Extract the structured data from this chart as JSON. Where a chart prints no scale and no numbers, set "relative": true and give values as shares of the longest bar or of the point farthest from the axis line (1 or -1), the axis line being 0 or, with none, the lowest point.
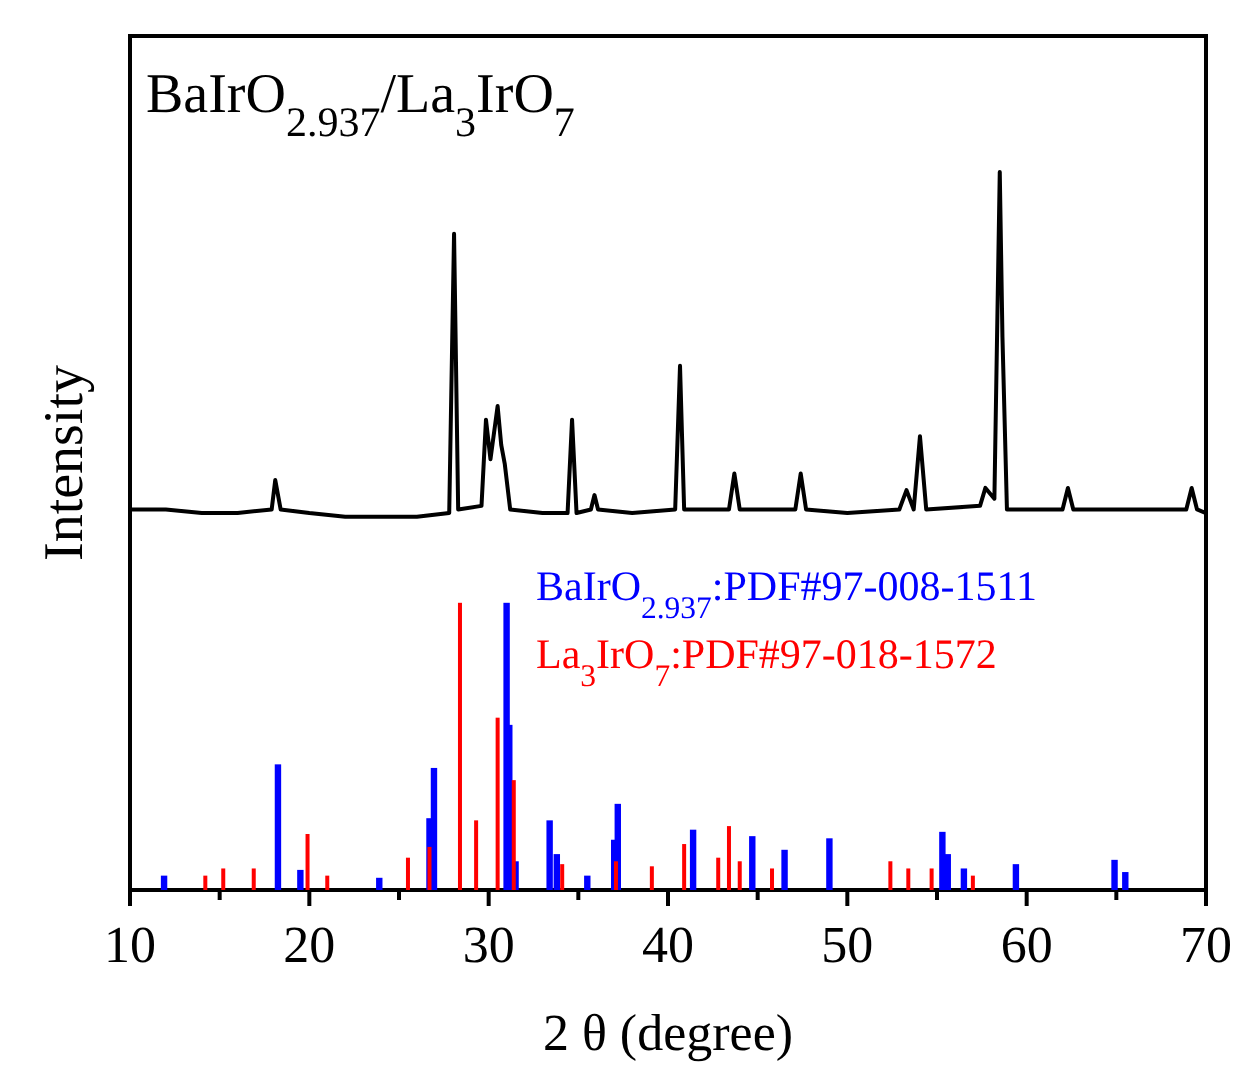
{
  "chart_data": {
    "type": "bar",
    "title": "BaIrO$_{2.937}$/La$_{3}$IrO$_{7}$",
    "xlabel": "2 θ (degree)",
    "ylabel": "Intensity",
    "relative": true,
    "xlim": [
      10,
      70
    ],
    "xticks": [
      10,
      {
        "value": 15,
        "label": null
      },
      20,
      {
        "value": 25,
        "label": null
      },
      30,
      {
        "value": 35,
        "label": null
      },
      40,
      {
        "value": 45,
        "label": null
      },
      50,
      {
        "value": 55,
        "label": null
      },
      60,
      {
        "value": 65,
        "label": null
      },
      70
    ],
    "legend": "right",
    "series": [
      {
        "type": "line",
        "color": "#000000",
        "x": [
          10,
          12,
          14,
          16,
          17.9,
          18.1,
          18.4,
          20,
          22,
          24,
          26,
          27.8,
          28.07,
          28.3,
          29.6,
          29.85,
          30.1,
          30.5,
          30.7,
          30.9,
          31.2,
          33,
          34.4,
          34.65,
          34.9,
          35.7,
          35.9,
          36.1,
          38,
          40.4,
          40.67,
          40.9,
          43.4,
          43.7,
          44,
          47.1,
          47.4,
          47.7,
          50,
          52.9,
          53.3,
          53.7,
          54.05,
          54.4,
          57.4,
          57.7,
          58.2,
          58.5,
          58.65,
          58.9,
          62,
          62.3,
          62.6,
          65,
          68.9,
          69.2,
          69.5,
          70
        ],
        "values": [
          0.53,
          0.53,
          0.525,
          0.525,
          0.53,
          0.571,
          0.53,
          0.525,
          0.52,
          0.52,
          0.52,
          0.525,
          0.914,
          0.53,
          0.535,
          0.655,
          0.6,
          0.674,
          0.62,
          0.593,
          0.53,
          0.525,
          0.525,
          0.655,
          0.525,
          0.53,
          0.55,
          0.53,
          0.525,
          0.53,
          0.73,
          0.53,
          0.53,
          0.58,
          0.53,
          0.53,
          0.58,
          0.53,
          0.525,
          0.53,
          0.557,
          0.53,
          0.632,
          0.53,
          0.535,
          0.56,
          0.545,
          1.0,
          0.77,
          0.53,
          0.53,
          0.56,
          0.53,
          0.53,
          0.53,
          0.56,
          0.53,
          0.525
        ]
      },
      {
        "name": "BaIrO$_{2.937}$:PDF#97-008-1511",
        "color": "#0000ff",
        "x": [
          11.9,
          18.25,
          19.5,
          23.9,
          26.7,
          26.95,
          31.0,
          31.15,
          31.5,
          33.4,
          33.8,
          35.5,
          37.0,
          37.2,
          41.4,
          44.7,
          46.5,
          49.0,
          55.3,
          55.6,
          56.5,
          59.4,
          64.9,
          65.5
        ],
        "values": [
          0.02,
          0.175,
          0.028,
          0.017,
          0.1,
          0.17,
          0.4,
          0.23,
          0.04,
          0.097,
          0.05,
          0.02,
          0.07,
          0.12,
          0.084,
          0.075,
          0.056,
          0.072,
          0.081,
          0.05,
          0.03,
          0.036,
          0.042,
          0.025
        ]
      },
      {
        "name": "La$_{3}$IrO$_{7}$:PDF#97-018-1572",
        "color": "#ff0000",
        "x": [
          14.2,
          15.2,
          16.9,
          19.9,
          21.0,
          25.5,
          26.7,
          28.4,
          29.3,
          30.5,
          31.4,
          34.1,
          37.1,
          39.1,
          40.9,
          42.8,
          43.4,
          44.0,
          45.8,
          52.4,
          53.4,
          54.7,
          57.0
        ],
        "values": [
          0.02,
          0.03,
          0.03,
          0.078,
          0.02,
          0.045,
          0.06,
          0.4,
          0.097,
          0.24,
          0.153,
          0.036,
          0.04,
          0.033,
          0.064,
          0.045,
          0.089,
          0.04,
          0.03,
          0.04,
          0.03,
          0.03,
          0.02
        ]
      }
    ]
  }
}
